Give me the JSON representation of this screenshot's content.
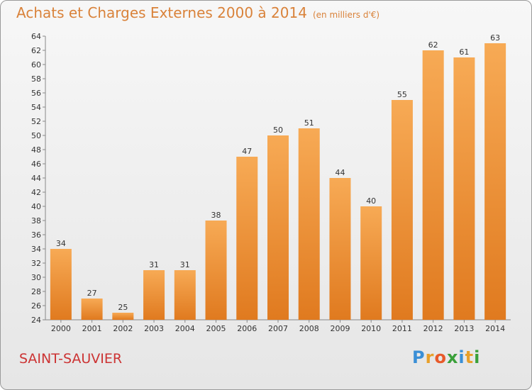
{
  "header": {
    "title": "Achats et Charges Externes 2000 à 2014",
    "subtitle": "(en milliers d'€)"
  },
  "footer": {
    "commune": "SAINT-SAUVIER",
    "logo": "Proxiti"
  },
  "colors": {
    "bar_light": "#f6a851",
    "bar_dark": "#e07a1f",
    "title": "#d9823a",
    "commune": "#cc3333"
  },
  "chart_data": {
    "type": "bar",
    "title": "Achats et Charges Externes 2000 à 2014",
    "subtitle": "(en milliers d'€)",
    "categories": [
      "2000",
      "2001",
      "2002",
      "2003",
      "2004",
      "2005",
      "2006",
      "2007",
      "2008",
      "2009",
      "2010",
      "2011",
      "2012",
      "2013",
      "2014"
    ],
    "values": [
      34,
      27,
      25,
      31,
      31,
      38,
      47,
      50,
      51,
      44,
      40,
      55,
      62,
      61,
      63
    ],
    "ylim": [
      24,
      64
    ],
    "yticks": [
      24,
      26,
      28,
      30,
      32,
      34,
      36,
      38,
      40,
      42,
      44,
      46,
      48,
      50,
      52,
      54,
      56,
      58,
      60,
      62,
      64
    ],
    "grid": false,
    "xlabel": "",
    "ylabel": ""
  }
}
